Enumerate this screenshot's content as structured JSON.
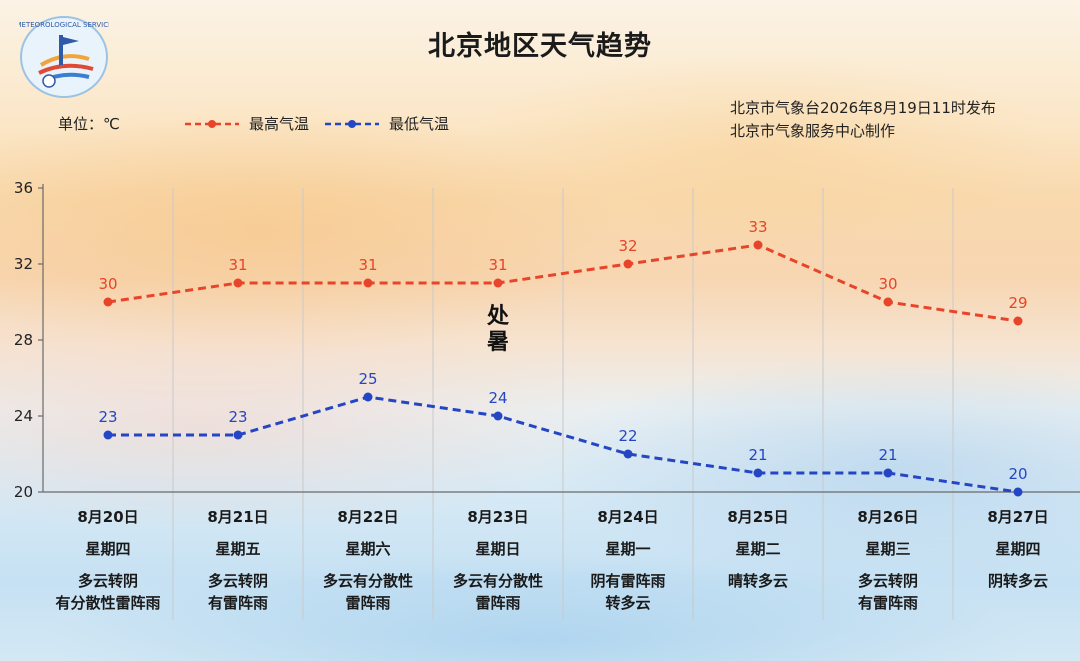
{
  "title": "北京地区天气趋势",
  "unit_label": "单位：℃",
  "issuer": {
    "line1": "北京市气象台2026年8月19日11时发布",
    "line2": "北京市气象服务中心制作"
  },
  "solar_term": [
    "处",
    "暑"
  ],
  "logo_text": "METEOROLOGICAL SERVICE",
  "colors": {
    "high": "#e8442a",
    "low": "#2546c4",
    "grid": "#c9c9c9",
    "axis": "#6a6a6a"
  },
  "chart_data": {
    "type": "line",
    "title": "北京地区天气趋势",
    "categories": [
      "8月20日",
      "8月21日",
      "8月22日",
      "8月23日",
      "8月24日",
      "8月25日",
      "8月26日",
      "8月27日"
    ],
    "y_ticks": [
      20,
      24,
      28,
      32,
      36
    ],
    "ylim": [
      20,
      36
    ],
    "grid": true,
    "legend": "top-left",
    "series": [
      {
        "name": "最高气温",
        "values": [
          30,
          31,
          31,
          31,
          32,
          33,
          30,
          29
        ]
      },
      {
        "name": "最低气温",
        "values": [
          23,
          23,
          25,
          24,
          22,
          21,
          21,
          20
        ]
      }
    ]
  },
  "days": [
    {
      "date": "8月20日",
      "weekday": "星期四",
      "weather": [
        "多云转阴",
        "有分散性雷阵雨"
      ]
    },
    {
      "date": "8月21日",
      "weekday": "星期五",
      "weather": [
        "多云转阴",
        "有雷阵雨"
      ]
    },
    {
      "date": "8月22日",
      "weekday": "星期六",
      "weather": [
        "多云有分散性",
        "雷阵雨"
      ]
    },
    {
      "date": "8月23日",
      "weekday": "星期日",
      "weather": [
        "多云有分散性",
        "雷阵雨"
      ]
    },
    {
      "date": "8月24日",
      "weekday": "星期一",
      "weather": [
        "阴有雷阵雨",
        "转多云"
      ]
    },
    {
      "date": "8月25日",
      "weekday": "星期二",
      "weather": [
        "晴转多云",
        ""
      ]
    },
    {
      "date": "8月26日",
      "weekday": "星期三",
      "weather": [
        "多云转阴",
        "有雷阵雨"
      ]
    },
    {
      "date": "8月27日",
      "weekday": "星期四",
      "weather": [
        "阴转多云",
        ""
      ]
    }
  ]
}
